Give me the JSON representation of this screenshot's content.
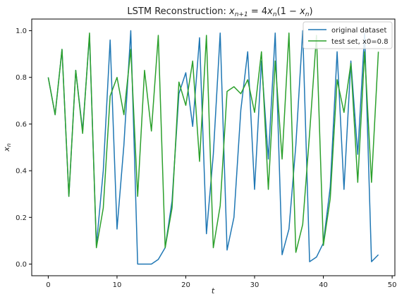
{
  "chart_data": {
    "type": "line",
    "title": "LSTM Reconstruction: xₙ₊₁ = 4xₙ(1 − xₙ)",
    "xlabel": "t",
    "ylabel": "xₙ",
    "xlim": [
      -2.4,
      50.4
    ],
    "ylim": [
      -0.05,
      1.05
    ],
    "xticks": [
      0,
      10,
      20,
      30,
      40,
      50
    ],
    "yticks": [
      0.0,
      0.2,
      0.4,
      0.6,
      0.8,
      1.0
    ],
    "xtick_labels": [
      "0",
      "10",
      "20",
      "30",
      "40",
      "50"
    ],
    "ytick_labels": [
      "0.0",
      "0.2",
      "0.4",
      "0.6",
      "0.8",
      "1.0"
    ],
    "grid": false,
    "legend_position": "top-right",
    "x": [
      0,
      1,
      2,
      3,
      4,
      5,
      6,
      7,
      8,
      9,
      10,
      11,
      12,
      13,
      14,
      15,
      16,
      17,
      18,
      19,
      20,
      21,
      22,
      23,
      24,
      25,
      26,
      27,
      28,
      29,
      30,
      31,
      32,
      33,
      34,
      35,
      36,
      37,
      38,
      39,
      40,
      41,
      42,
      43,
      44,
      45,
      46,
      47,
      48
    ],
    "series": [
      {
        "name": "original dataset",
        "color": "#1f77b4",
        "values": [
          0.8,
          0.64,
          0.92,
          0.29,
          0.83,
          0.57,
          0.98,
          0.08,
          0.4,
          0.96,
          0.15,
          0.51,
          1.0,
          0.0,
          0.0,
          0.0,
          0.02,
          0.07,
          0.27,
          0.73,
          0.82,
          0.59,
          0.97,
          0.13,
          0.47,
          0.99,
          0.06,
          0.2,
          0.66,
          0.91,
          0.32,
          0.87,
          0.45,
          0.99,
          0.04,
          0.15,
          0.51,
          1.0,
          0.01,
          0.03,
          0.09,
          0.33,
          0.91,
          0.32,
          0.87,
          0.47,
          0.99,
          0.01,
          0.04
        ]
      },
      {
        "name": "test set, x0=0.8",
        "color": "#2ca02c",
        "values": [
          0.8,
          0.64,
          0.92,
          0.29,
          0.83,
          0.56,
          0.99,
          0.07,
          0.24,
          0.72,
          0.8,
          0.64,
          0.92,
          0.29,
          0.83,
          0.57,
          0.98,
          0.07,
          0.24,
          0.78,
          0.68,
          0.87,
          0.44,
          0.98,
          0.07,
          0.25,
          0.74,
          0.76,
          0.73,
          0.79,
          0.65,
          0.91,
          0.32,
          0.87,
          0.45,
          0.99,
          0.05,
          0.17,
          0.56,
          0.98,
          0.08,
          0.28,
          0.79,
          0.65,
          0.86,
          0.35,
          0.91,
          0.35,
          0.91
        ]
      }
    ]
  }
}
